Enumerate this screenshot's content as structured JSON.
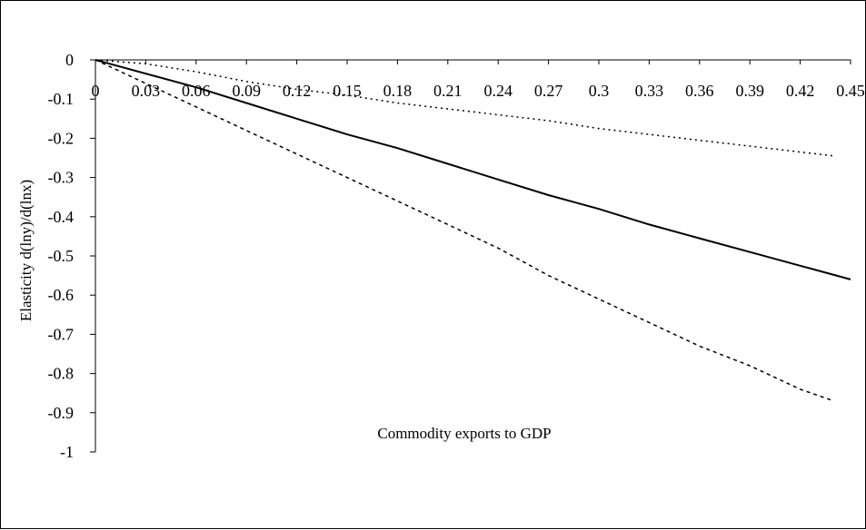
{
  "chart_data": {
    "type": "line",
    "title": "",
    "xlabel": "Commodity exports to GDP",
    "ylabel": "Elasticity d(lny)/d(lnx)",
    "xlim": [
      0,
      0.45
    ],
    "ylim": [
      -1,
      0
    ],
    "x_ticks": [
      "0",
      "0.03",
      "0.06",
      "0.09",
      "0.12",
      "0.15",
      "0.18",
      "0.21",
      "0.24",
      "0.27",
      "0.3",
      "0.33",
      "0.36",
      "0.39",
      "0.42",
      "0.45"
    ],
    "y_ticks": [
      "0",
      "-0.1",
      "-0.2",
      "-0.3",
      "-0.4",
      "-0.5",
      "-0.6",
      "-0.7",
      "-0.8",
      "-0.9",
      "-1"
    ],
    "grid": false,
    "legend": "none",
    "series": [
      {
        "style": "solid",
        "color": "#000000",
        "x": [
          0,
          0.03,
          0.06,
          0.09,
          0.12,
          0.15,
          0.18,
          0.21,
          0.24,
          0.27,
          0.3,
          0.33,
          0.36,
          0.39,
          0.42,
          0.45
        ],
        "values": [
          0,
          -0.035,
          -0.07,
          -0.11,
          -0.15,
          -0.19,
          -0.225,
          -0.265,
          -0.305,
          -0.345,
          -0.38,
          -0.42,
          -0.455,
          -0.49,
          -0.525,
          -0.56
        ]
      },
      {
        "style": "dotted",
        "color": "#000000",
        "x": [
          0,
          0.03,
          0.06,
          0.09,
          0.12,
          0.15,
          0.18,
          0.21,
          0.24,
          0.27,
          0.3,
          0.33,
          0.36,
          0.39,
          0.42,
          0.44
        ],
        "values": [
          0,
          -0.01,
          -0.03,
          -0.055,
          -0.075,
          -0.09,
          -0.11,
          -0.125,
          -0.14,
          -0.155,
          -0.175,
          -0.19,
          -0.205,
          -0.22,
          -0.235,
          -0.245
        ]
      },
      {
        "style": "dashed",
        "color": "#000000",
        "x": [
          0,
          0.03,
          0.06,
          0.09,
          0.12,
          0.15,
          0.18,
          0.21,
          0.24,
          0.27,
          0.3,
          0.33,
          0.36,
          0.39,
          0.42,
          0.44
        ],
        "values": [
          0,
          -0.06,
          -0.12,
          -0.18,
          -0.24,
          -0.3,
          -0.36,
          -0.42,
          -0.48,
          -0.55,
          -0.61,
          -0.67,
          -0.73,
          -0.78,
          -0.84,
          -0.87
        ]
      }
    ]
  }
}
